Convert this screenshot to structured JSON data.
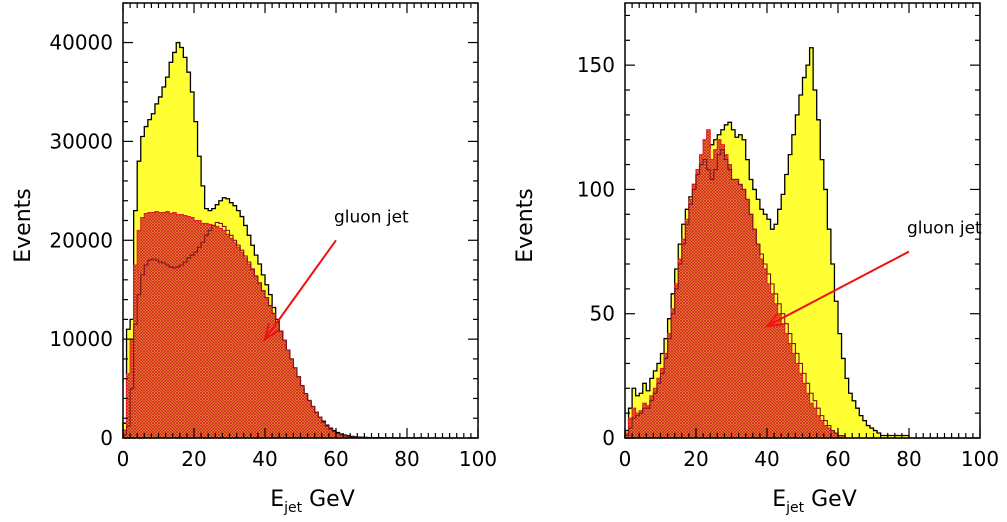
{
  "chart_data": [
    {
      "type": "area",
      "xlim": [
        0,
        100
      ],
      "ylim": [
        0,
        44000
      ],
      "xticks": [
        0,
        20,
        40,
        60,
        80,
        100
      ],
      "yticks": [
        0,
        10000,
        20000,
        30000,
        40000
      ],
      "xticklabels": [
        "0",
        "20",
        "40",
        "60",
        "80",
        "100"
      ],
      "yticklabels": [
        "0",
        "10000",
        "20000",
        "30000",
        "40000"
      ],
      "xlabel_main": "E",
      "xlabel_sub": "jet",
      "xlabel_rest": " GeV",
      "ylabel": "Events",
      "annotation": {
        "text": "gluon jet",
        "arrow_from": [
          60,
          20000
        ],
        "arrow_to": [
          40,
          10000
        ]
      },
      "series": [
        {
          "role": "total",
          "fill": "#ffff33",
          "x": [
            0,
            1,
            2,
            3,
            4,
            5,
            6,
            7,
            8,
            9,
            10,
            11,
            12,
            13,
            14,
            15,
            16,
            17,
            18,
            19,
            20,
            21,
            22,
            23,
            24,
            25,
            26,
            27,
            28,
            29,
            30,
            31,
            32,
            33,
            34,
            35,
            36,
            37,
            38,
            39,
            40,
            41,
            42,
            43,
            44,
            45,
            46,
            47,
            48,
            49,
            50,
            51,
            52,
            53,
            54,
            55,
            56,
            57,
            58,
            59,
            60,
            61,
            62,
            63,
            64,
            65,
            66,
            67,
            68,
            69,
            70,
            72,
            75,
            80,
            85,
            90,
            100
          ],
          "values": [
            1500,
            11000,
            12000,
            23000,
            28000,
            30500,
            31500,
            32200,
            32800,
            33800,
            34500,
            35500,
            36500,
            38000,
            39000,
            40000,
            39500,
            38500,
            37000,
            35000,
            32000,
            28500,
            25500,
            23200,
            23000,
            23200,
            23600,
            24000,
            24300,
            24200,
            23800,
            23500,
            23000,
            22400,
            21500,
            20500,
            19500,
            18500,
            17600,
            16500,
            15500,
            14500,
            13200,
            12000,
            10800,
            9600,
            8600,
            7600,
            6700,
            5800,
            5000,
            4300,
            3700,
            3100,
            2600,
            2100,
            1700,
            1300,
            1000,
            750,
            550,
            400,
            300,
            220,
            160,
            120,
            90,
            70,
            55,
            40,
            30,
            20,
            12,
            6,
            3,
            1,
            0
          ]
        },
        {
          "role": "gluon",
          "fill": "#e06030",
          "x": [
            0,
            1,
            2,
            3,
            4,
            5,
            6,
            7,
            8,
            9,
            10,
            11,
            12,
            13,
            14,
            15,
            16,
            17,
            18,
            19,
            20,
            21,
            22,
            23,
            24,
            25,
            26,
            27,
            28,
            29,
            30,
            31,
            32,
            33,
            34,
            35,
            36,
            37,
            38,
            39,
            40,
            41,
            42,
            43,
            44,
            45,
            46,
            47,
            48,
            49,
            50,
            51,
            52,
            53,
            54,
            55,
            56,
            57,
            58,
            59,
            60,
            61,
            62,
            63,
            64,
            65,
            66,
            67,
            68,
            69,
            70,
            72,
            75,
            80,
            85,
            90,
            100
          ],
          "values": [
            800,
            6500,
            10000,
            17500,
            21000,
            22300,
            22700,
            22800,
            22800,
            22900,
            22800,
            22800,
            22900,
            22700,
            22800,
            22600,
            22600,
            22500,
            22400,
            22300,
            22000,
            22000,
            21700,
            21700,
            21600,
            21500,
            21400,
            21200,
            21000,
            20600,
            20200,
            19800,
            19300,
            18800,
            18200,
            17600,
            17000,
            16300,
            15600,
            14900,
            14200,
            13400,
            12600,
            11700,
            10800,
            9900,
            8900,
            8000,
            7100,
            6200,
            5300,
            4500,
            3800,
            3200,
            2600,
            2100,
            1600,
            1200,
            900,
            650,
            450,
            320,
            220,
            150,
            100,
            70,
            50,
            35,
            25,
            18,
            12,
            7,
            4,
            2,
            1,
            0,
            0
          ]
        },
        {
          "role": "quark_outline",
          "stroke": "#7a1520",
          "x": [
            0,
            1,
            2,
            3,
            4,
            5,
            6,
            7,
            8,
            9,
            10,
            11,
            12,
            13,
            14,
            15,
            16,
            17,
            18,
            19,
            20,
            21,
            22,
            23,
            24,
            25,
            26,
            27,
            28,
            29,
            30,
            31,
            32,
            33,
            34,
            35,
            36,
            37,
            38,
            39,
            40,
            41,
            42,
            43,
            44,
            45,
            46,
            47,
            48,
            49,
            50,
            51,
            52,
            53,
            54,
            55,
            56,
            57,
            58,
            59,
            60,
            61,
            62,
            63,
            64,
            65,
            66,
            67,
            68,
            69,
            70,
            72,
            75,
            80,
            85,
            90,
            100
          ],
          "values": [
            300,
            1200,
            5000,
            11500,
            14500,
            16500,
            17500,
            18000,
            18100,
            18000,
            17800,
            17700,
            17500,
            17300,
            17200,
            17300,
            17500,
            17800,
            18200,
            18500,
            18800,
            19300,
            19800,
            20500,
            21000,
            21500,
            21800,
            21700,
            21400,
            21000,
            20500,
            20000,
            19500,
            19000,
            18400,
            17800,
            17100,
            16400,
            15700,
            14900,
            14200,
            13400,
            12600,
            11700,
            10800,
            9900,
            8900,
            8000,
            7100,
            6200,
            5300,
            4500,
            3800,
            3200,
            2600,
            2100,
            1600,
            1200,
            900,
            650,
            450,
            320,
            220,
            150,
            100,
            70,
            50,
            35,
            25,
            18,
            12,
            7,
            4,
            2,
            1,
            0,
            0
          ]
        }
      ]
    },
    {
      "type": "area",
      "xlim": [
        0,
        100
      ],
      "ylim": [
        0,
        175
      ],
      "xticks": [
        0,
        20,
        40,
        60,
        80,
        100
      ],
      "yticks": [
        0,
        50,
        100,
        150
      ],
      "xticklabels": [
        "0",
        "20",
        "40",
        "60",
        "80",
        "100"
      ],
      "yticklabels": [
        "0",
        "50",
        "100",
        "150"
      ],
      "xlabel_main": "E",
      "xlabel_sub": "jet",
      "xlabel_rest": " GeV",
      "ylabel": "Events",
      "annotation": {
        "text": "gluon jet",
        "arrow_from": [
          80,
          75
        ],
        "arrow_to": [
          40,
          45
        ]
      },
      "series": [
        {
          "role": "total",
          "fill": "#ffff33",
          "x": [
            0,
            1,
            2,
            3,
            4,
            5,
            6,
            7,
            8,
            9,
            10,
            11,
            12,
            13,
            14,
            15,
            16,
            17,
            18,
            19,
            20,
            21,
            22,
            23,
            24,
            25,
            26,
            27,
            28,
            29,
            30,
            31,
            32,
            33,
            34,
            35,
            36,
            37,
            38,
            39,
            40,
            41,
            42,
            43,
            44,
            45,
            46,
            47,
            48,
            49,
            50,
            51,
            52,
            53,
            54,
            55,
            56,
            57,
            58,
            59,
            60,
            61,
            62,
            63,
            64,
            65,
            66,
            67,
            68,
            69,
            70,
            71,
            72,
            75,
            80,
            90,
            100
          ],
          "values": [
            3,
            12,
            20,
            17,
            18,
            22,
            19,
            24,
            27,
            30,
            34,
            40,
            48,
            58,
            68,
            78,
            86,
            92,
            97,
            102,
            106,
            110,
            114,
            117,
            118,
            120,
            122,
            124,
            126,
            127,
            124,
            121,
            122,
            120,
            112,
            104,
            100,
            96,
            92,
            90,
            88,
            84,
            86,
            92,
            98,
            106,
            114,
            122,
            130,
            138,
            145,
            150,
            157,
            140,
            128,
            112,
            100,
            84,
            70,
            55,
            42,
            32,
            24,
            18,
            15,
            12,
            9,
            7,
            5,
            4,
            3,
            2,
            1,
            1,
            0,
            0,
            0
          ]
        },
        {
          "role": "gluon",
          "fill": "#e06030",
          "x": [
            0,
            1,
            2,
            3,
            4,
            5,
            6,
            7,
            8,
            9,
            10,
            11,
            12,
            13,
            14,
            15,
            16,
            17,
            18,
            19,
            20,
            21,
            22,
            23,
            24,
            25,
            26,
            27,
            28,
            29,
            30,
            31,
            32,
            33,
            34,
            35,
            36,
            37,
            38,
            39,
            40,
            41,
            42,
            43,
            44,
            45,
            46,
            47,
            48,
            49,
            50,
            51,
            52,
            53,
            54,
            55,
            56,
            57,
            58,
            59,
            60,
            61,
            62,
            63,
            64,
            65,
            66,
            67,
            68,
            69,
            70,
            71,
            72,
            75,
            80,
            90,
            100
          ],
          "values": [
            2,
            8,
            12,
            10,
            11,
            14,
            13,
            17,
            20,
            24,
            28,
            34,
            42,
            52,
            62,
            72,
            80,
            88,
            96,
            102,
            108,
            114,
            120,
            124,
            112,
            116,
            120,
            118,
            114,
            110,
            104,
            104,
            102,
            100,
            96,
            90,
            84,
            78,
            72,
            68,
            62,
            58,
            54,
            50,
            46,
            42,
            38,
            34,
            30,
            26,
            22,
            18,
            14,
            12,
            9,
            7,
            5,
            4,
            3,
            2,
            1,
            1,
            0,
            0,
            0,
            0,
            0,
            0,
            0,
            0,
            0,
            0,
            0,
            0,
            0,
            0,
            0
          ]
        },
        {
          "role": "quark_outline",
          "stroke": "#7a1520",
          "x": [
            0,
            1,
            2,
            3,
            4,
            5,
            6,
            7,
            8,
            9,
            10,
            11,
            12,
            13,
            14,
            15,
            16,
            17,
            18,
            19,
            20,
            21,
            22,
            23,
            24,
            25,
            26,
            27,
            28,
            29,
            30,
            31,
            32,
            33,
            34,
            35,
            36,
            37,
            38,
            39,
            40,
            41,
            42,
            43,
            44,
            45,
            46,
            47,
            48,
            49,
            50,
            51,
            52,
            53,
            54,
            55,
            56,
            57,
            58,
            59,
            60,
            61,
            62,
            63,
            64,
            65,
            66,
            67,
            68,
            69,
            70,
            71,
            72,
            75,
            80,
            90,
            100
          ],
          "values": [
            1,
            4,
            8,
            9,
            10,
            12,
            12,
            15,
            18,
            22,
            26,
            32,
            40,
            50,
            60,
            70,
            78,
            86,
            94,
            100,
            106,
            110,
            112,
            108,
            104,
            108,
            114,
            116,
            112,
            108,
            104,
            104,
            102,
            100,
            96,
            90,
            84,
            78,
            74,
            70,
            66,
            62,
            58,
            54,
            50,
            46,
            42,
            38,
            34,
            30,
            26,
            22,
            18,
            15,
            12,
            9,
            7,
            5,
            3,
            2,
            1,
            1,
            0,
            0,
            0,
            0,
            0,
            0,
            0,
            0,
            0,
            0,
            0,
            0,
            0,
            0,
            0
          ]
        }
      ]
    }
  ]
}
